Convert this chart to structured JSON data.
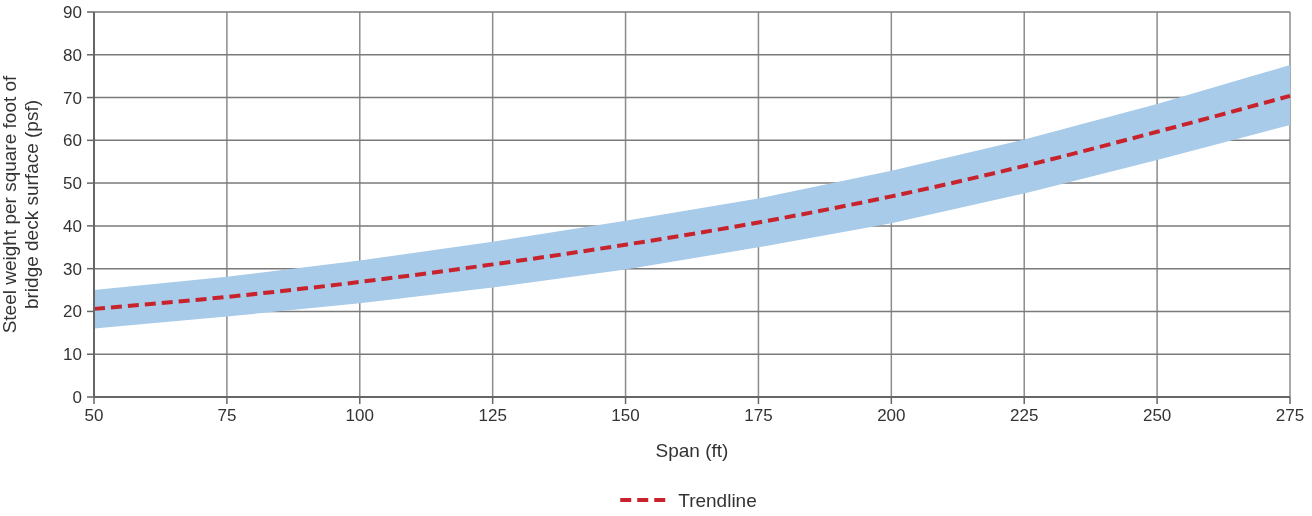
{
  "chart_data": {
    "type": "line",
    "xlabel": "Span (ft)",
    "ylabel": "Steel weight per square foot of\nbridge deck surface (psf)",
    "x": [
      50,
      75,
      100,
      125,
      150,
      175,
      200,
      225,
      250,
      275
    ],
    "series": [
      {
        "name": "Trendline",
        "color": "#c8232c",
        "values": [
          20.6,
          23.4,
          26.9,
          31.0,
          35.6,
          40.8,
          46.9,
          54.0,
          62.0,
          70.4
        ],
        "lower": [
          16.0,
          18.8,
          21.9,
          25.6,
          29.8,
          35.0,
          40.6,
          47.6,
          55.4,
          63.6
        ],
        "upper": [
          25.0,
          28.1,
          31.9,
          36.3,
          41.2,
          46.4,
          52.9,
          60.2,
          68.5,
          77.6
        ]
      }
    ],
    "xlim": [
      50,
      275
    ],
    "xticks": [
      50,
      75,
      100,
      125,
      150,
      175,
      200,
      225,
      250,
      275
    ],
    "ylim": [
      0,
      90
    ],
    "yticks": [
      0,
      10,
      20,
      30,
      40,
      50,
      60,
      70,
      80,
      90
    ],
    "grid": true,
    "line_style": "dashed",
    "legend": "bottom"
  }
}
